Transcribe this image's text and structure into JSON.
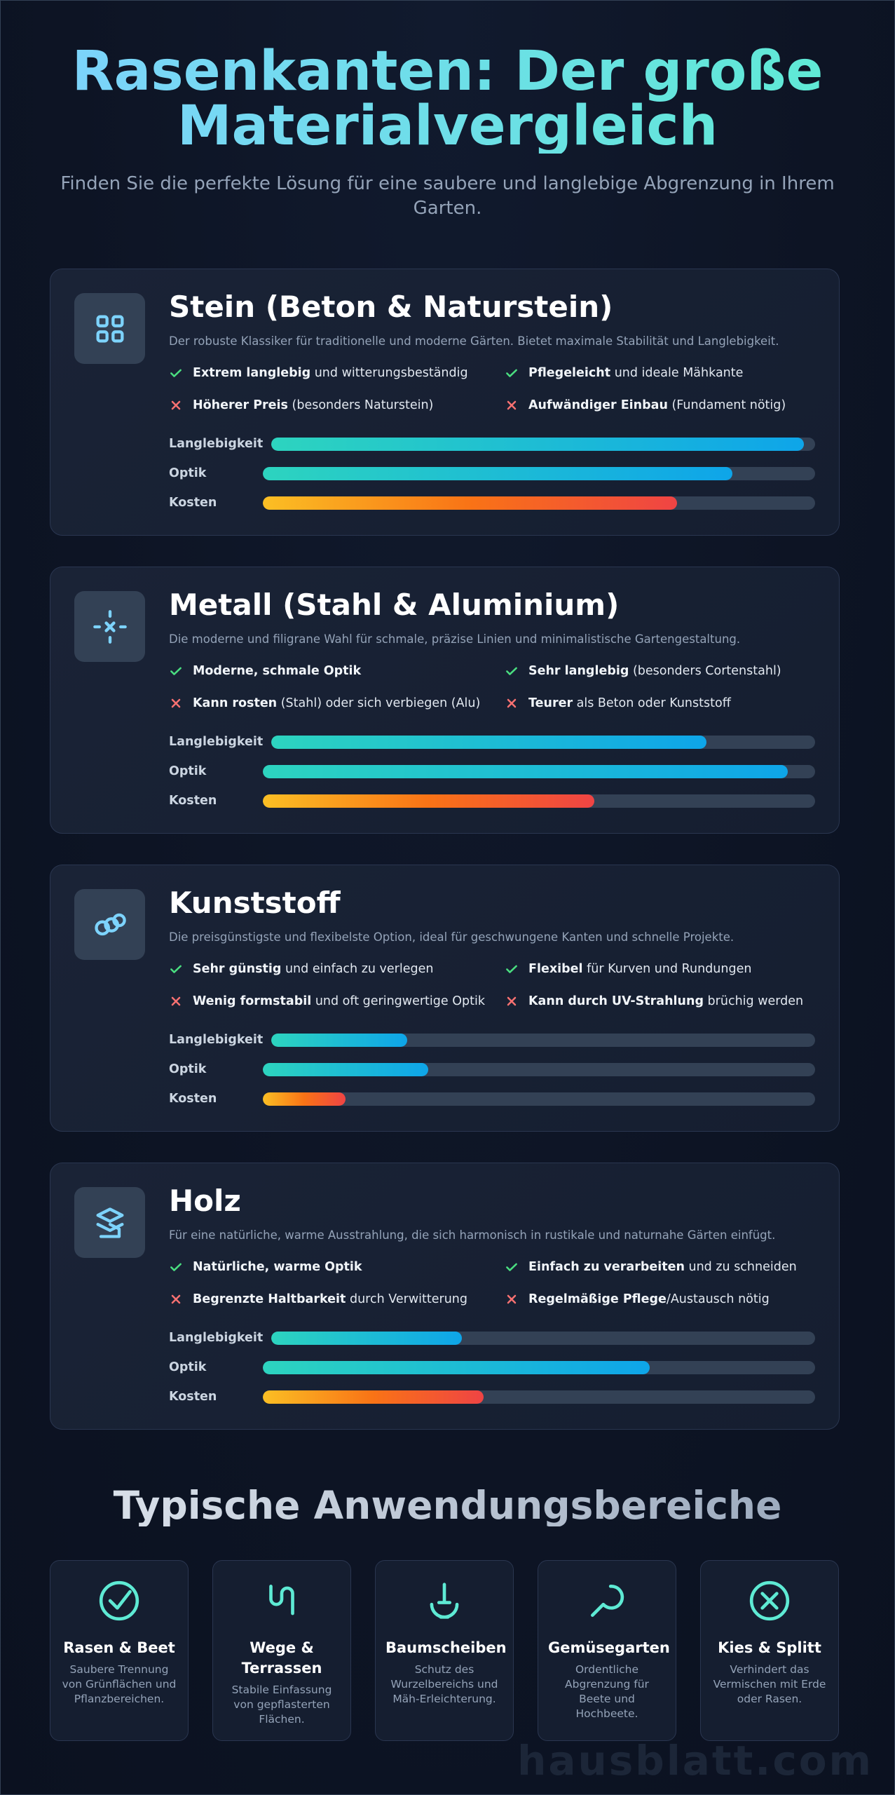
{
  "header": {
    "title": "Rasenkanten: Der große Materialvergleich",
    "subtitle": "Finden Sie die perfekte Lösung für eine saubere und langlebige Abgrenzung in Ihrem Garten."
  },
  "metric_labels": [
    "Langlebigkeit",
    "Optik",
    "Kosten"
  ],
  "xlim": [
    0,
    100
  ],
  "materials": [
    {
      "title": "Stein (Beton & Naturstein)",
      "description": "Der robuste Klassiker für traditionelle und moderne Gärten. Bietet maximale Stabilität und Langlebigkeit.",
      "pros": [
        {
          "bold": "Extrem langlebig",
          "text": " und witterungsbeständig"
        },
        {
          "bold": "Pflegeleicht",
          "text": " und ideale Mähkante"
        }
      ],
      "cons": [
        {
          "bold": "Höherer Preis",
          "text": " (besonders Naturstein)"
        },
        {
          "bold": "Aufwändiger Einbau",
          "text": " (Fundament nötig)"
        }
      ],
      "ratings": [
        98,
        85,
        75
      ]
    },
    {
      "title": "Metall (Stahl & Aluminium)",
      "description": "Die moderne und filigrane Wahl für schmale, präzise Linien und minimalistische Gartengestaltung.",
      "pros": [
        {
          "bold": "Moderne, schmale Optik"
        },
        {
          "bold": "Sehr langlebig",
          "text": " (besonders Cortenstahl)"
        }
      ],
      "cons": [
        {
          "bold": "Kann rosten",
          "text": " (Stahl) oder sich verbiegen (Alu)"
        },
        {
          "bold": "Teurer",
          "text": " als Beton oder Kunststoff"
        }
      ],
      "ratings": [
        80,
        95,
        60
      ]
    },
    {
      "title": "Kunststoff",
      "description": "Die preisgünstigste und flexibelste Option, ideal für geschwungene Kanten und schnelle Projekte.",
      "pros": [
        {
          "bold": "Sehr günstig",
          "text": " und einfach zu verlegen"
        },
        {
          "bold": "Flexibel",
          "text": " für Kurven und Rundungen"
        }
      ],
      "cons": [
        {
          "bold": "Wenig formstabil",
          "text": " und oft geringwertige Optik"
        },
        {
          "bold": "Kann durch UV-Strahlung",
          "text": " brüchig werden"
        }
      ],
      "ratings": [
        25,
        30,
        15
      ]
    },
    {
      "title": "Holz",
      "description": "Für eine natürliche, warme Ausstrahlung, die sich harmonisch in rustikale und naturnahe Gärten einfügt.",
      "pros": [
        {
          "bold": "Natürliche, warme Optik"
        },
        {
          "bold": "Einfach zu verarbeiten",
          "text": " und zu schneiden"
        }
      ],
      "cons": [
        {
          "bold": "Begrenzte Haltbarkeit",
          "text": " durch Verwitterung"
        },
        {
          "bold": "Regelmäßige Pflege",
          "text": "/Austausch nötig"
        }
      ],
      "ratings": [
        35,
        70,
        40
      ]
    }
  ],
  "applications": {
    "title": "Typische Anwendungsbereiche",
    "items": [
      {
        "title": "Rasen & Beet",
        "text": "Saubere Trennung von Grünflächen und Pflanzbereichen."
      },
      {
        "title": "Wege & Terrassen",
        "text": "Stabile Einfassung von gepflasterten Flächen."
      },
      {
        "title": "Baumscheiben",
        "text": "Schutz des Wurzelbereichs und Mäh-Erleichterung."
      },
      {
        "title": "Gemüsegarten",
        "text": "Ordentliche Abgrenzung für Beete und Hochbeete."
      },
      {
        "title": "Kies & Splitt",
        "text": "Verhindert das Vermischen mit Erde oder Rasen."
      }
    ]
  },
  "watermark": "hausblatt.com"
}
